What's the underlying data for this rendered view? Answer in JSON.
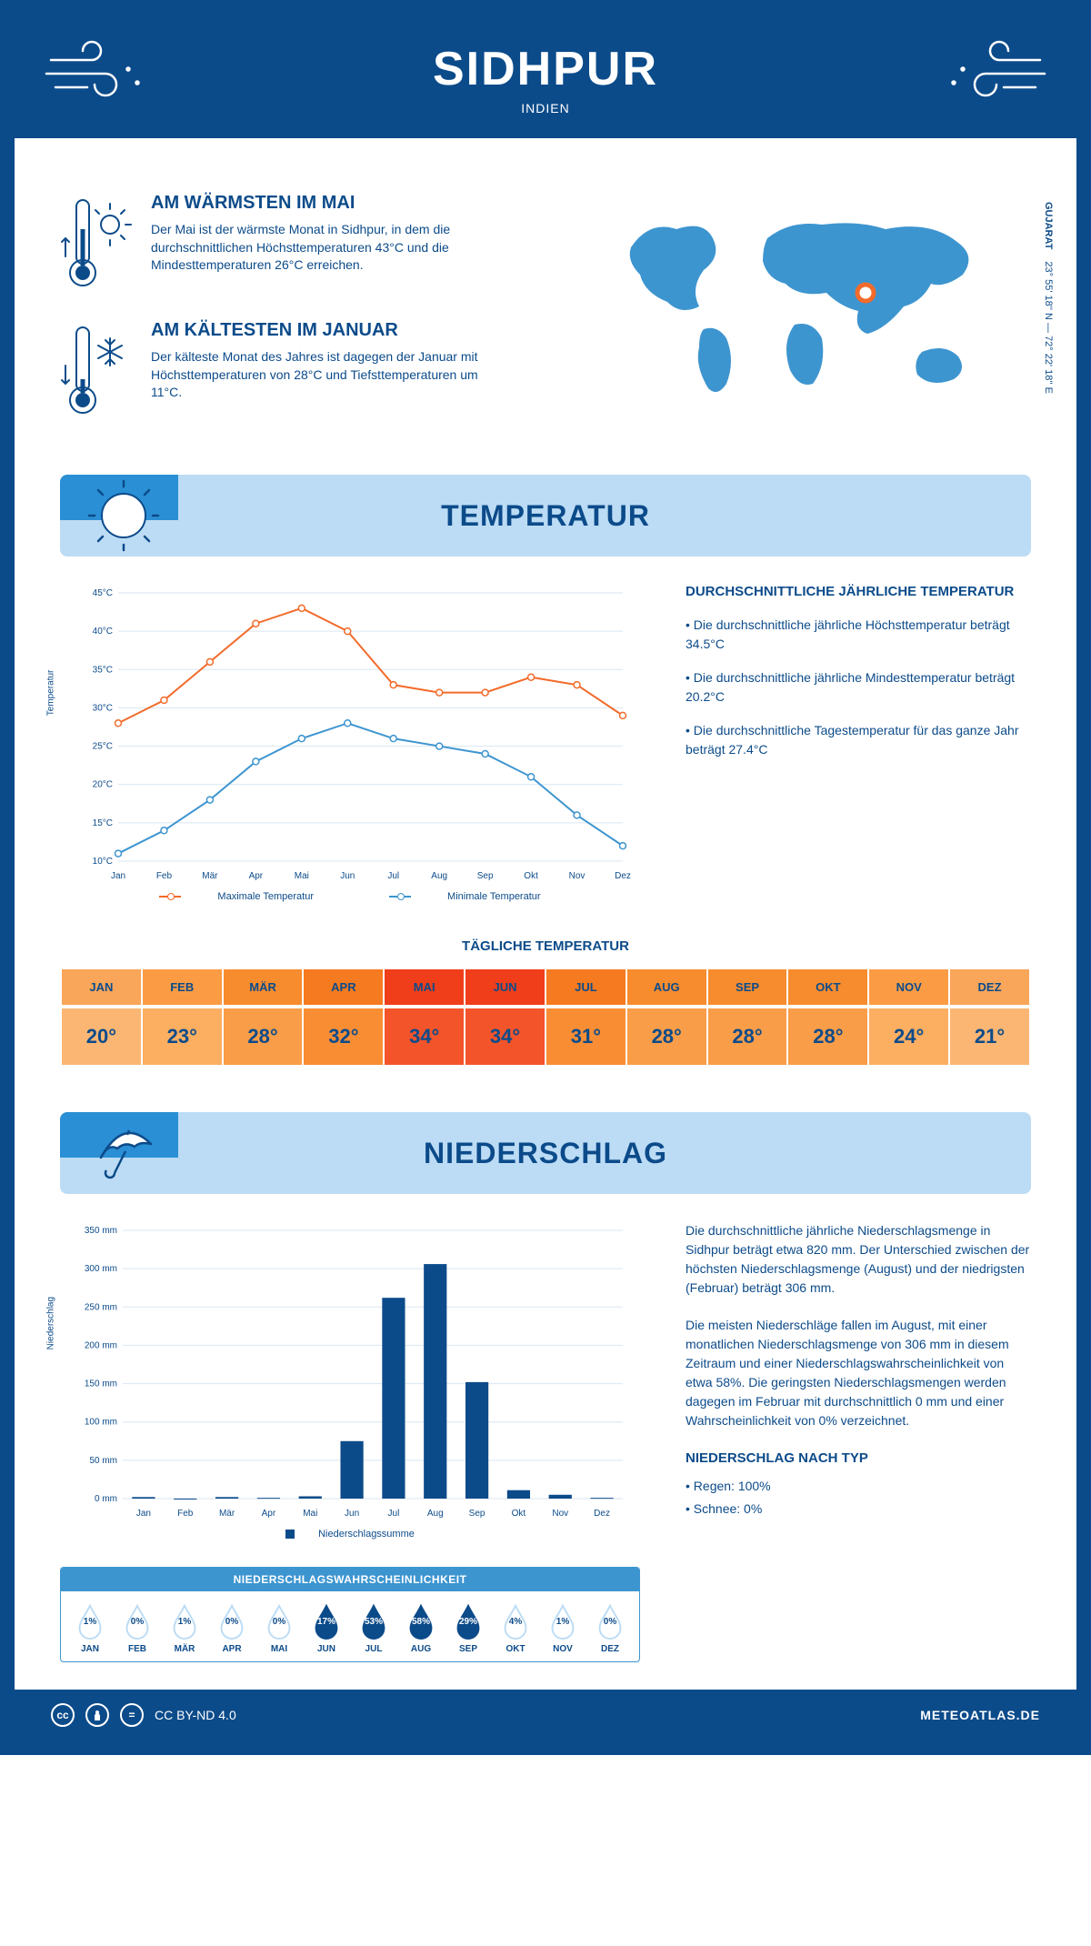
{
  "header": {
    "city": "SIDHPUR",
    "country": "INDIEN"
  },
  "location": {
    "region": "GUJARAT",
    "coords": "23° 55' 18'' N — 72° 22' 18'' E"
  },
  "extremes": {
    "warm": {
      "title": "AM WÄRMSTEN IM MAI",
      "body": "Der Mai ist der wärmste Monat in Sidhpur, in dem die durchschnittlichen Höchsttemperaturen 43°C und die Mindesttemperaturen 26°C erreichen."
    },
    "cold": {
      "title": "AM KÄLTESTEN IM JANUAR",
      "body": "Der kälteste Monat des Jahres ist dagegen der Januar mit Höchsttemperaturen von 28°C und Tiefsttemperaturen um 11°C."
    }
  },
  "sections": {
    "temperature": "TEMPERATUR",
    "precipitation": "NIEDERSCHLAG"
  },
  "temp_chart": {
    "ylabel": "Temperatur",
    "months": [
      "Jan",
      "Feb",
      "Mär",
      "Apr",
      "Mai",
      "Jun",
      "Jul",
      "Aug",
      "Sep",
      "Okt",
      "Nov",
      "Dez"
    ],
    "max": [
      28,
      31,
      36,
      41,
      43,
      40,
      33,
      32,
      32,
      34,
      33,
      29
    ],
    "min": [
      11,
      14,
      18,
      23,
      26,
      28,
      26,
      25,
      24,
      21,
      16,
      12
    ],
    "ymin": 10,
    "ymax": 45,
    "ystep": 5,
    "ytick_suffix": "°C",
    "max_color": "#f26b2b",
    "min_color": "#3d95d0",
    "legend_max": "Maximale Temperatur",
    "legend_min": "Minimale Temperatur"
  },
  "temp_text": {
    "title": "DURCHSCHNITTLICHE JÄHRLICHE TEMPERATUR",
    "p1": "• Die durchschnittliche jährliche Höchsttemperatur beträgt 34.5°C",
    "p2": "• Die durchschnittliche jährliche Mindesttemperatur beträgt 20.2°C",
    "p3": "• Die durchschnittliche Tagestemperatur für das ganze Jahr beträgt 27.4°C"
  },
  "daily": {
    "title": "TÄGLICHE TEMPERATUR",
    "months": [
      "JAN",
      "FEB",
      "MÄR",
      "APR",
      "MAI",
      "JUN",
      "JUL",
      "AUG",
      "SEP",
      "OKT",
      "NOV",
      "DEZ"
    ],
    "values": [
      "20°",
      "23°",
      "28°",
      "32°",
      "34°",
      "34°",
      "31°",
      "28°",
      "28°",
      "28°",
      "24°",
      "21°"
    ],
    "label_colors": [
      "#f9a55a",
      "#fb9c45",
      "#f78c2e",
      "#f67a1f",
      "#f03e1a",
      "#f03e1a",
      "#f67a1f",
      "#f78c2e",
      "#f78c2e",
      "#f78c2e",
      "#fb9c45",
      "#f9a55a"
    ],
    "value_colors": [
      "#fbb673",
      "#fcae61",
      "#f99d48",
      "#f88d34",
      "#f4542a",
      "#f4542a",
      "#f88d34",
      "#f99d48",
      "#f99d48",
      "#f99d48",
      "#fcae61",
      "#fbb673"
    ]
  },
  "precip_chart": {
    "ylabel": "Niederschlag",
    "months": [
      "Jan",
      "Feb",
      "Mär",
      "Apr",
      "Mai",
      "Jun",
      "Jul",
      "Aug",
      "Sep",
      "Okt",
      "Nov",
      "Dez"
    ],
    "values": [
      2,
      0,
      2,
      1,
      3,
      75,
      262,
      306,
      152,
      11,
      5,
      1
    ],
    "ymin": 0,
    "ymax": 350,
    "ystep": 50,
    "ytick_suffix": " mm",
    "bar_color": "#0c4b8a",
    "legend": "Niederschlagssumme"
  },
  "precip_text": {
    "p1": "Die durchschnittliche jährliche Niederschlagsmenge in Sidhpur beträgt etwa 820 mm. Der Unterschied zwischen der höchsten Niederschlagsmenge (August) und der niedrigsten (Februar) beträgt 306 mm.",
    "p2": "Die meisten Niederschläge fallen im August, mit einer monatlichen Niederschlagsmenge von 306 mm in diesem Zeitraum und einer Niederschlagswahrscheinlichkeit von etwa 58%. Die geringsten Niederschlagsmengen werden dagegen im Februar mit durchschnittlich 0 mm und einer Wahrscheinlichkeit von 0% verzeichnet.",
    "type_title": "NIEDERSCHLAG NACH TYP",
    "type1": "• Regen: 100%",
    "type2": "• Schnee: 0%"
  },
  "prob": {
    "title": "NIEDERSCHLAGSWAHRSCHEINLICHKEIT",
    "months": [
      "JAN",
      "FEB",
      "MÄR",
      "APR",
      "MAI",
      "JUN",
      "JUL",
      "AUG",
      "SEP",
      "OKT",
      "NOV",
      "DEZ"
    ],
    "values": [
      "1%",
      "0%",
      "1%",
      "0%",
      "0%",
      "17%",
      "53%",
      "58%",
      "29%",
      "4%",
      "1%",
      "0%"
    ],
    "filled": [
      false,
      false,
      false,
      false,
      false,
      true,
      true,
      true,
      true,
      false,
      false,
      false
    ],
    "fill_color": "#0c4b8a",
    "outline_color": "#bcdcf5"
  },
  "footer": {
    "license": "CC BY-ND 4.0",
    "site": "METEOATLAS.DE"
  }
}
